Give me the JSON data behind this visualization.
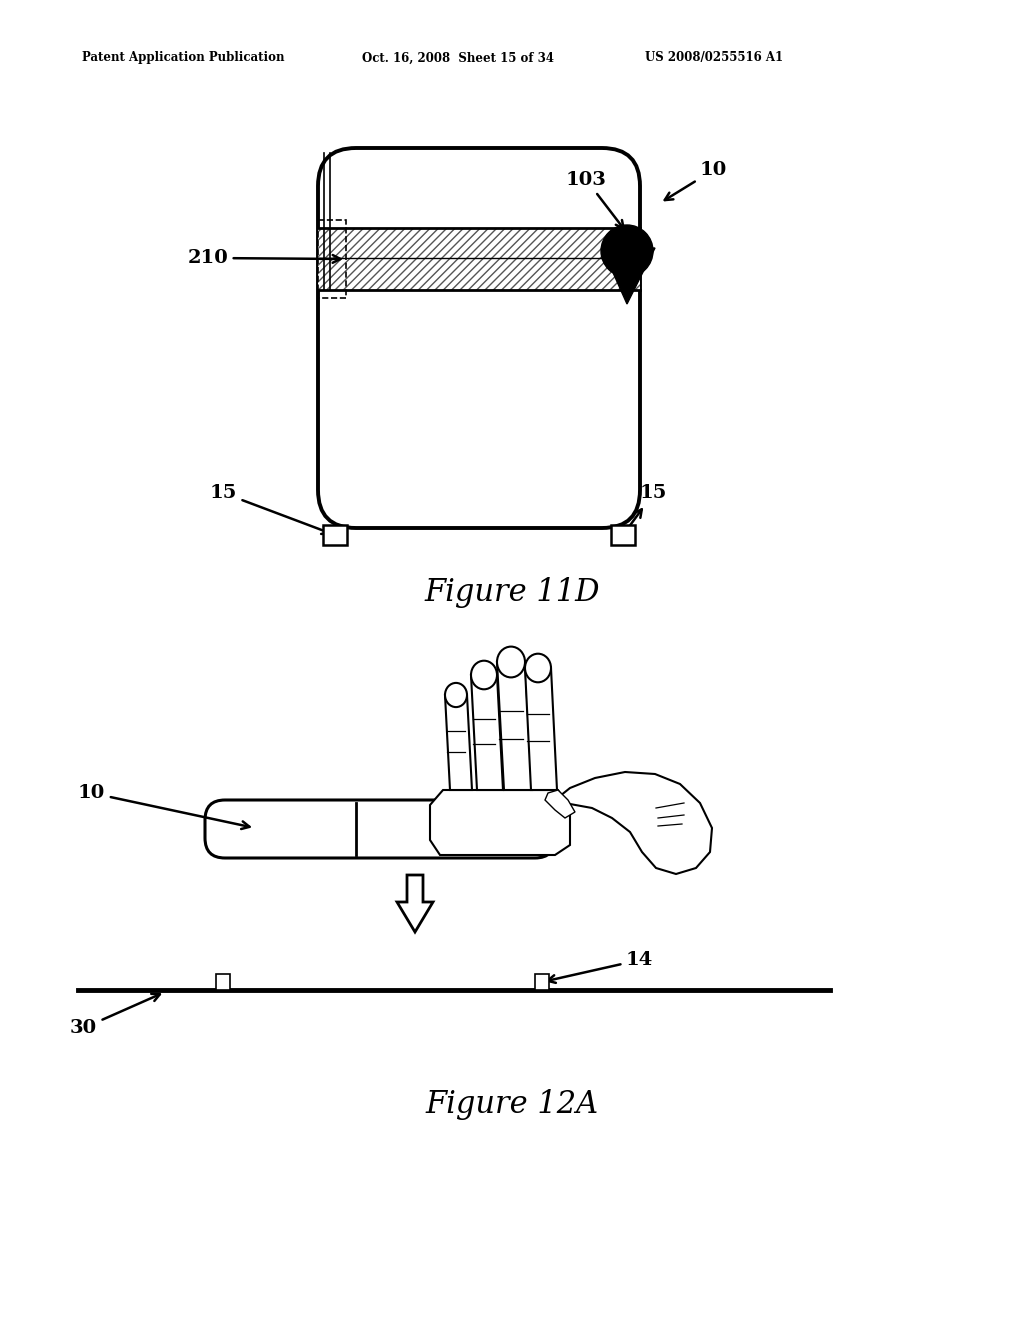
{
  "bg_color": "#ffffff",
  "header_left": "Patent Application Publication",
  "header_mid": "Oct. 16, 2008  Sheet 15 of 34",
  "header_right": "US 2008/0255516 A1",
  "fig11d_title": "Figure 11D",
  "fig12a_title": "Figure 12A",
  "label_210": "210",
  "label_103": "103",
  "label_10a": "10",
  "label_15a": "15",
  "label_15b": "15",
  "label_10b": "10",
  "label_14": "14",
  "label_30": "30"
}
